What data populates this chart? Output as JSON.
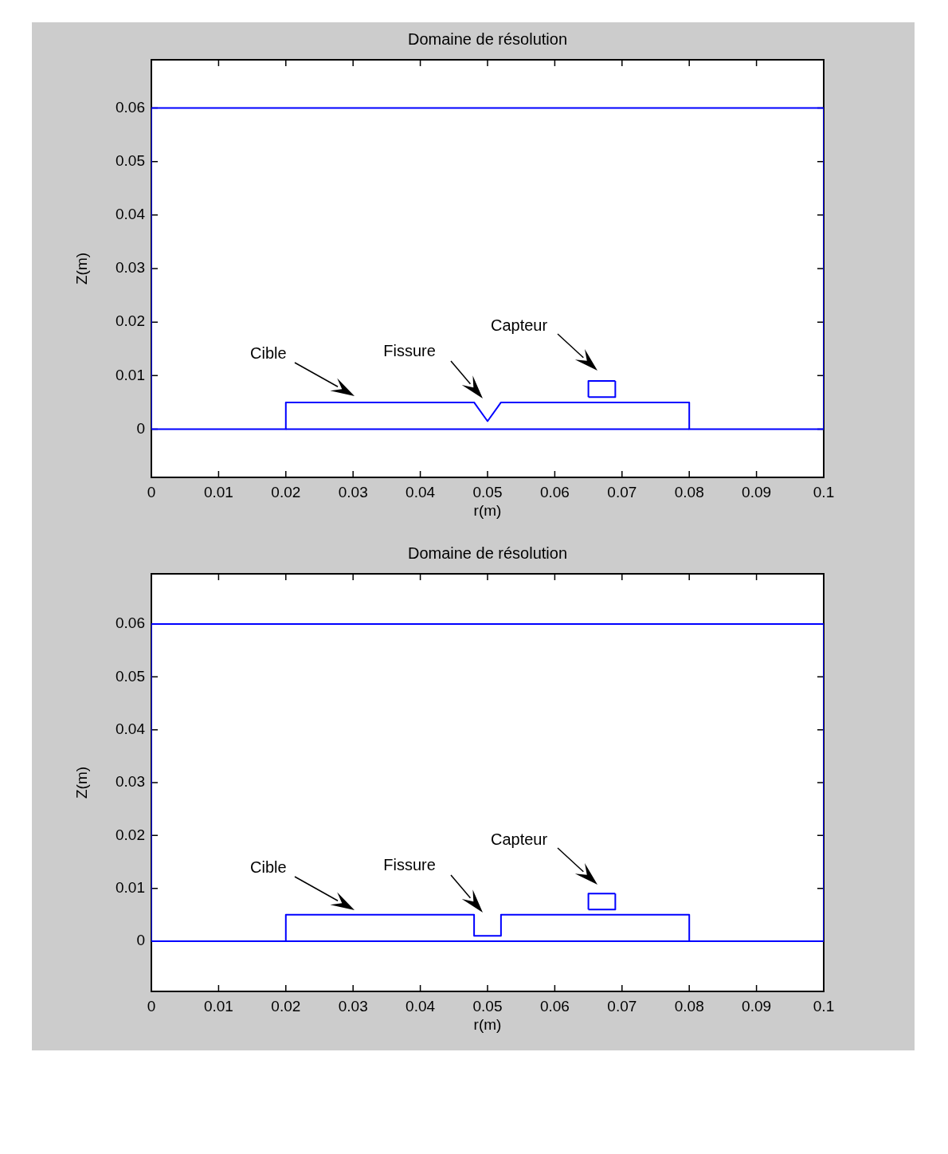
{
  "chart_data": [
    {
      "type": "line",
      "title": "Domaine de résolution",
      "xlabel": "r(m)",
      "ylabel": "Z(m)",
      "xlim": [
        0,
        0.1
      ],
      "ylim": [
        -0.009,
        0.069
      ],
      "xticks": [
        0,
        0.01,
        0.02,
        0.03,
        0.04,
        0.05,
        0.06,
        0.07,
        0.08,
        0.09,
        0.1
      ],
      "yticks": [
        0,
        0.01,
        0.02,
        0.03,
        0.04,
        0.05,
        0.06
      ],
      "grid": false,
      "legend": false,
      "marker": "none",
      "line_style": "solid",
      "series": [
        {
          "color": "#0000ff",
          "x": [
            0,
            0.1
          ],
          "values": [
            0.06,
            0.06
          ]
        },
        {
          "color": "#0000ff",
          "x": [
            0,
            0
          ],
          "values": [
            0,
            0.06
          ]
        },
        {
          "color": "#0000ff",
          "x": [
            0.1,
            0.1
          ],
          "values": [
            0,
            0.06
          ]
        },
        {
          "color": "#0000ff",
          "x": [
            0,
            0.02,
            0.02,
            0.048,
            0.05,
            0.052,
            0.08,
            0.08,
            0.1
          ],
          "values": [
            0,
            0,
            0.005,
            0.005,
            0.0015,
            0.005,
            0.005,
            0,
            0
          ]
        },
        {
          "color": "#0000ff",
          "x": [
            0.02,
            0.08
          ],
          "values": [
            0,
            0
          ]
        },
        {
          "color": "#0000ff",
          "x": [
            0.065,
            0.065,
            0.069
          ],
          "values": [
            0.006,
            0.009,
            0.009
          ]
        },
        {
          "color": "#0000ff",
          "x": [
            0.065,
            0.069,
            0.069
          ],
          "values": [
            0.006,
            0.006,
            0.009
          ]
        }
      ],
      "annotations": [
        "Cible",
        "Fissure",
        "Capteur"
      ]
    },
    {
      "type": "line",
      "title": "Domaine de résolution",
      "xlabel": "r(m)",
      "ylabel": "Z(m)",
      "xlim": [
        0,
        0.1
      ],
      "ylim": [
        -0.0095,
        0.0695
      ],
      "xticks": [
        0,
        0.01,
        0.02,
        0.03,
        0.04,
        0.05,
        0.06,
        0.07,
        0.08,
        0.09,
        0.1
      ],
      "yticks": [
        0,
        0.01,
        0.02,
        0.03,
        0.04,
        0.05,
        0.06
      ],
      "grid": false,
      "legend": false,
      "marker": "none",
      "line_style": "solid",
      "series": [
        {
          "color": "#0000ff",
          "x": [
            0,
            0.1
          ],
          "values": [
            0.06,
            0.06
          ]
        },
        {
          "color": "#0000ff",
          "x": [
            0,
            0
          ],
          "values": [
            0,
            0.06
          ]
        },
        {
          "color": "#0000ff",
          "x": [
            0.1,
            0.1
          ],
          "values": [
            0,
            0.06
          ]
        },
        {
          "color": "#0000ff",
          "x": [
            0,
            0.02,
            0.02,
            0.048,
            0.048,
            0.052,
            0.052,
            0.08,
            0.08,
            0.1
          ],
          "values": [
            0,
            0,
            0.005,
            0.005,
            0.001,
            0.001,
            0.005,
            0.005,
            0,
            0
          ]
        },
        {
          "color": "#0000ff",
          "x": [
            0.02,
            0.08
          ],
          "values": [
            0,
            0
          ]
        },
        {
          "color": "#0000ff",
          "x": [
            0.065,
            0.065,
            0.069
          ],
          "values": [
            0.006,
            0.009,
            0.009
          ]
        },
        {
          "color": "#0000ff",
          "x": [
            0.065,
            0.069,
            0.069
          ],
          "values": [
            0.006,
            0.006,
            0.009
          ]
        }
      ],
      "annotations": [
        "Cible",
        "Fissure",
        "Capteur"
      ]
    }
  ]
}
